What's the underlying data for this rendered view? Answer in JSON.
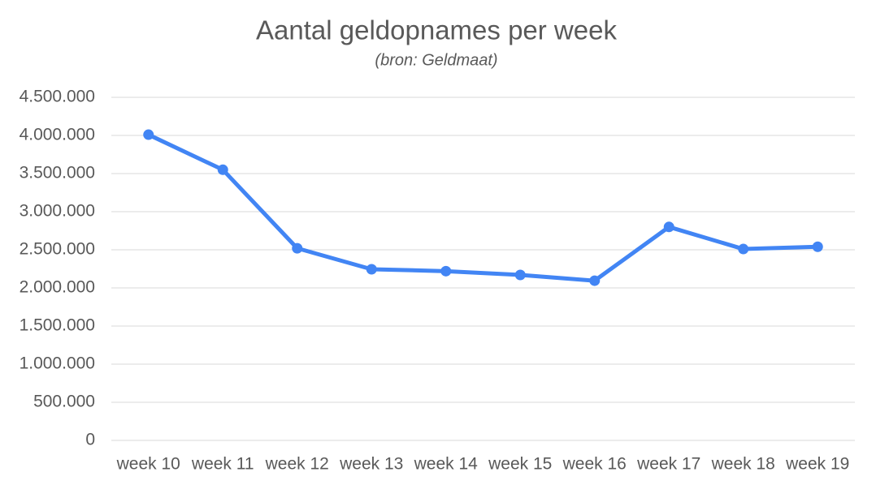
{
  "chart_data": {
    "type": "line",
    "title": "Aantal geldopnames per week",
    "subtitle": "(bron: Geldmaat)",
    "categories": [
      "week 10",
      "week 11",
      "week 12",
      "week 13",
      "week 14",
      "week 15",
      "week 16",
      "week 17",
      "week 18",
      "week 19"
    ],
    "series": [
      {
        "name": "Aantal geldopnames",
        "color": "#4285f4",
        "values": [
          4010000,
          3550000,
          2520000,
          2245000,
          2220000,
          2170000,
          2095000,
          2800000,
          2510000,
          2540000
        ]
      }
    ],
    "ylim": [
      0,
      4500000
    ],
    "yticks": [
      0,
      {
        "value": 500000,
        "label": "500.000"
      },
      {
        "value": 1000000,
        "label": "1.000.000"
      },
      {
        "value": 1500000,
        "label": "1.500.000"
      },
      {
        "value": 2000000,
        "label": "2.000.000"
      },
      {
        "value": 2500000,
        "label": "2.500.000"
      },
      {
        "value": 3000000,
        "label": "3.000.000"
      },
      {
        "value": 3500000,
        "label": "3.500.000"
      },
      {
        "value": 4000000,
        "label": "4.000.000"
      },
      {
        "value": 4500000,
        "label": "4.500.000"
      }
    ],
    "grid": true
  }
}
